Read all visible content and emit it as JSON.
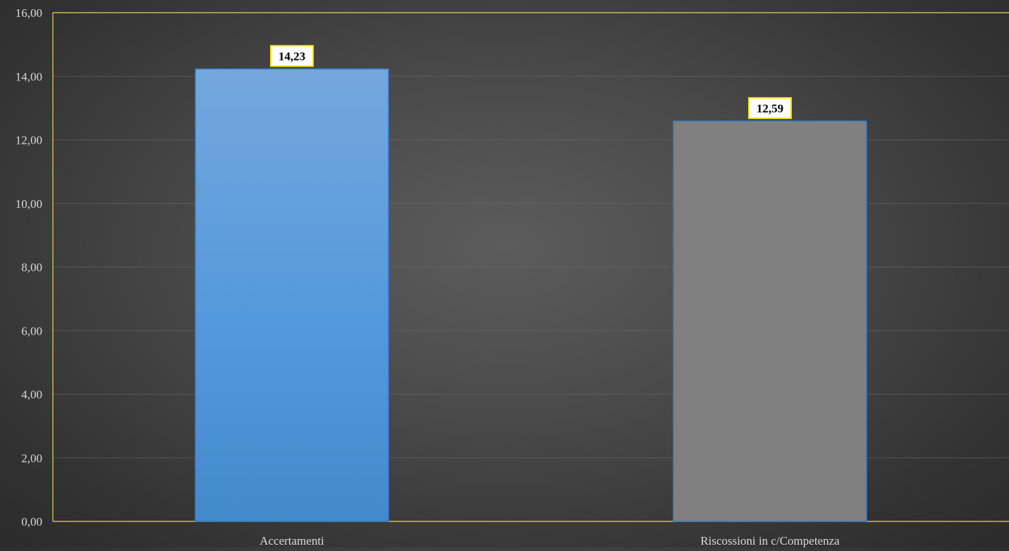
{
  "chart_data": {
    "type": "bar",
    "title": "",
    "xlabel": "",
    "ylabel": "",
    "categories": [
      "Accertamenti",
      "Riscossioni in c/Competenza"
    ],
    "values": [
      14.23,
      12.59
    ],
    "data_labels": [
      "14,23",
      "12,59"
    ],
    "bar_colors": [
      "#4a90d9",
      "#808080"
    ],
    "ylim": [
      0,
      16
    ],
    "yticks": [
      {
        "value": 0,
        "label": "0,00"
      },
      {
        "value": 2,
        "label": "2,00"
      },
      {
        "value": 4,
        "label": "4,00"
      },
      {
        "value": 6,
        "label": "6,00"
      },
      {
        "value": 8,
        "label": "8,00"
      },
      {
        "value": 10,
        "label": "10,00"
      },
      {
        "value": 12,
        "label": "12,00"
      },
      {
        "value": 14,
        "label": "14,00"
      },
      {
        "value": 16,
        "label": "16,00"
      }
    ],
    "grid": true,
    "legend": "none",
    "axis_color": "#e8d84a",
    "label_box_border": "#f2e600"
  }
}
